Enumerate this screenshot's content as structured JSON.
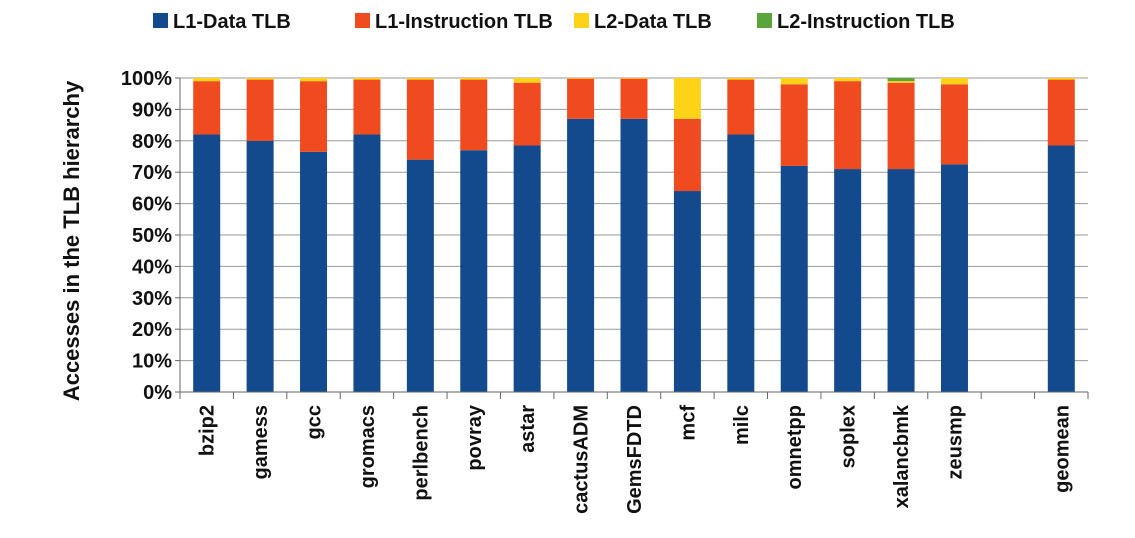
{
  "chart_data": {
    "type": "bar",
    "stacked": true,
    "ylabel": "Accesses in the TLB hierarchy",
    "xlabel": "",
    "ylim": [
      0,
      100
    ],
    "yticks": [
      "0%",
      "10%",
      "20%",
      "30%",
      "40%",
      "50%",
      "60%",
      "70%",
      "80%",
      "90%",
      "100%"
    ],
    "legend_position": "top",
    "categories": [
      "bzip2",
      "gamess",
      "gcc",
      "gromacs",
      "perlbench",
      "povray",
      "astar",
      "cactusADM",
      "GemsFDTD",
      "mcf",
      "milc",
      "omnetpp",
      "soplex",
      "xalancbmk",
      "zeusmp",
      "",
      "geomean"
    ],
    "series": [
      {
        "name": "L1-Data TLB",
        "color": "#134a8e",
        "values": [
          82,
          80,
          76.5,
          82,
          74,
          77,
          78.5,
          87,
          87,
          64,
          82,
          72,
          71,
          71,
          72.5,
          null,
          78.5
        ]
      },
      {
        "name": "L1-Instruction TLB",
        "color": "#f04a1f",
        "values": [
          17,
          19.5,
          22.5,
          17.5,
          25.5,
          22.5,
          20,
          12.8,
          12.8,
          23,
          17.5,
          26,
          28,
          27.5,
          25.5,
          null,
          21
        ]
      },
      {
        "name": "L2-Data TLB",
        "color": "#ffd21a",
        "values": [
          1,
          0.5,
          1,
          0.5,
          0.5,
          0.5,
          1.5,
          0.2,
          0.2,
          13,
          0.5,
          2,
          1,
          0.5,
          2,
          null,
          0.5
        ]
      },
      {
        "name": "L2-Instruction TLB",
        "color": "#5aa53a",
        "values": [
          0,
          0,
          0,
          0,
          0,
          0,
          0,
          0,
          0,
          0,
          0,
          0,
          0,
          1,
          0,
          null,
          0
        ]
      }
    ]
  }
}
